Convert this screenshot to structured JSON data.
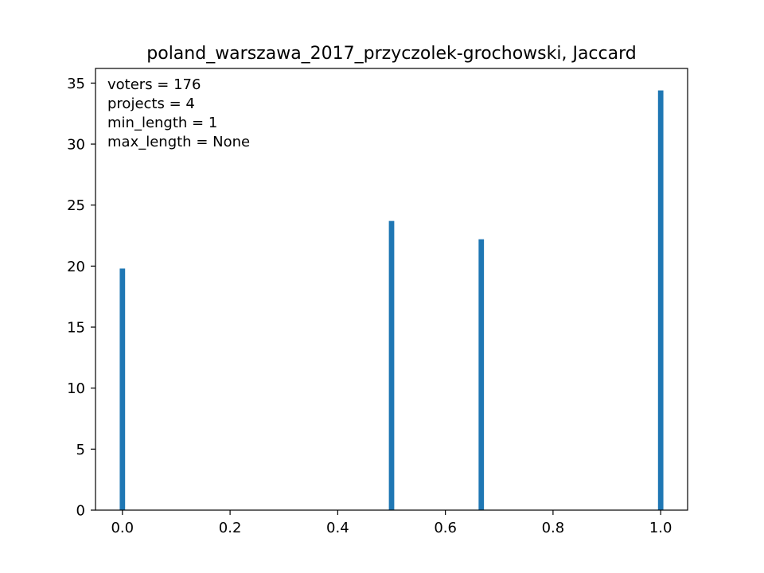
{
  "chart_data": {
    "type": "bar",
    "title": "poland_warszawa_2017_przyczolek-grochowski, Jaccard",
    "xlabel": "",
    "ylabel": "",
    "x": [
      0.0,
      0.5,
      0.6667,
      1.0
    ],
    "values": [
      19.8,
      23.7,
      22.2,
      34.4
    ],
    "bar_width": 0.01,
    "xlim": [
      -0.05,
      1.05
    ],
    "ylim": [
      0,
      36.2
    ],
    "xticks": [
      0.0,
      0.2,
      0.4,
      0.6,
      0.8,
      1.0
    ],
    "xtick_labels": [
      "0.0",
      "0.2",
      "0.4",
      "0.6",
      "0.8",
      "1.0"
    ],
    "yticks": [
      0,
      5,
      10,
      15,
      20,
      25,
      30,
      35
    ],
    "ytick_labels": [
      "0",
      "5",
      "10",
      "15",
      "20",
      "25",
      "30",
      "35"
    ],
    "bar_color": "#1f77b4",
    "grid": false,
    "annotations": [
      "voters = 176",
      "projects = 4",
      "min_length = 1",
      "max_length = None"
    ],
    "annotation_placement": "top-left"
  }
}
